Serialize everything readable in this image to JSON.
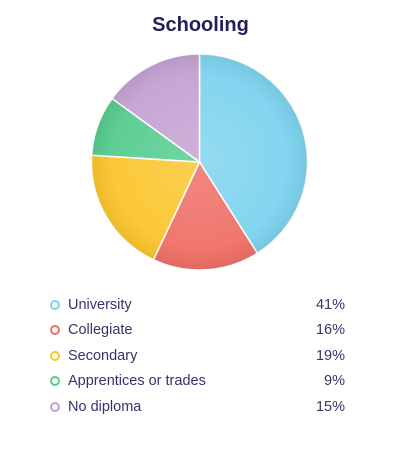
{
  "chart_data": {
    "type": "pie",
    "title": "Schooling",
    "categories": [
      "University",
      "Collegiate",
      "Secondary",
      "Apprentices or trades",
      "No diploma"
    ],
    "values": [
      41,
      16,
      19,
      9,
      15
    ],
    "value_labels": [
      "41%",
      "16%",
      "19%",
      "9%",
      "15%"
    ],
    "colors": [
      "#7dd3ee",
      "#ef6f66",
      "#fbc52c",
      "#56cc8f",
      "#c4a1d2"
    ],
    "legend_placement": "bottom",
    "unit": "%"
  }
}
